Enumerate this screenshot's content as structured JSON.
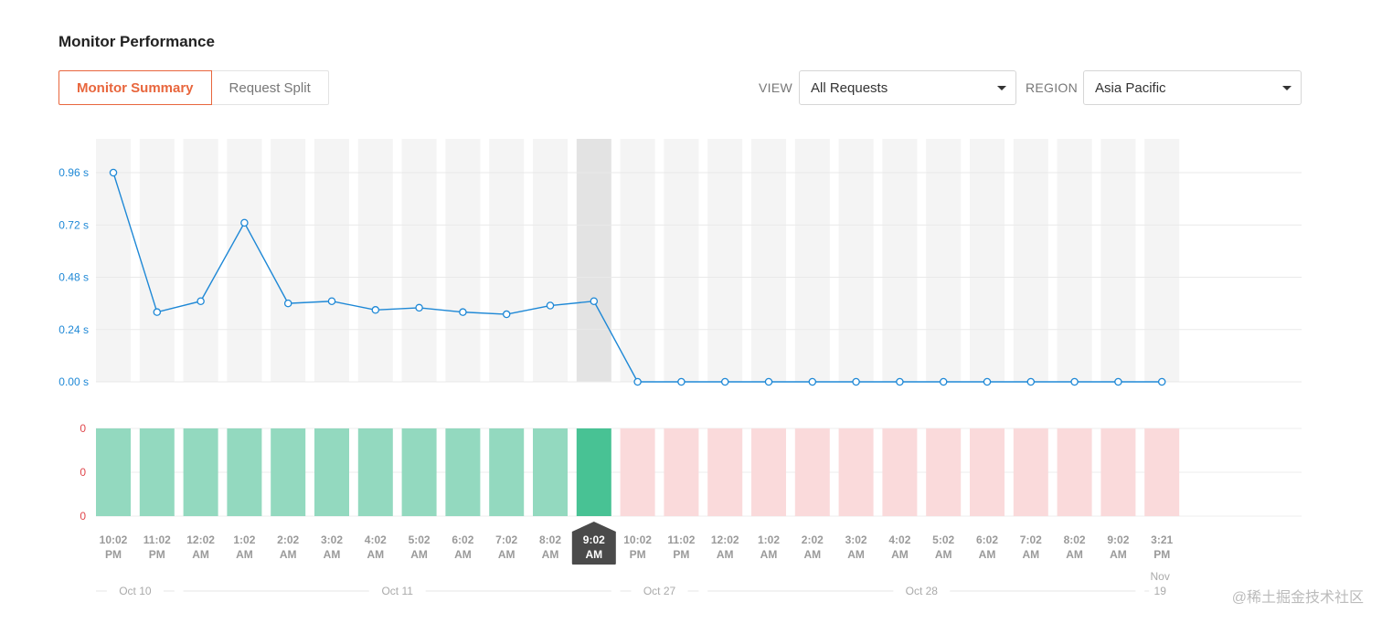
{
  "header": {
    "title": "Monitor Performance"
  },
  "tabs": [
    {
      "label": "Monitor Summary",
      "active": true
    },
    {
      "label": "Request Split",
      "active": false
    }
  ],
  "filters": {
    "view_label": "VIEW",
    "view_value": "All Requests",
    "region_label": "REGION",
    "region_value": "Asia Pacific"
  },
  "colors": {
    "accent": "#e8663d",
    "line": "#1e88d6",
    "success_bar": "#93d9bf",
    "success_bar_active": "#48c294",
    "fail_bar": "#fadadb",
    "fail_axis": "#e0474c",
    "column_bg": "#f4f4f4",
    "column_active": "#e3e3e3",
    "badge_bg": "#4a4a4a"
  },
  "chart_data": {
    "type": "line",
    "y_tick_labels": [
      "0.96 s",
      "0.72 s",
      "0.48 s",
      "0.24 s",
      "0.00 s"
    ],
    "y_ticks": [
      0.96,
      0.72,
      0.48,
      0.24,
      0.0
    ],
    "ylim": [
      0,
      0.96
    ],
    "x": [
      [
        "10:02",
        "PM"
      ],
      [
        "11:02",
        "PM"
      ],
      [
        "12:02",
        "AM"
      ],
      [
        "1:02",
        "AM"
      ],
      [
        "2:02",
        "AM"
      ],
      [
        "3:02",
        "AM"
      ],
      [
        "4:02",
        "AM"
      ],
      [
        "5:02",
        "AM"
      ],
      [
        "6:02",
        "AM"
      ],
      [
        "7:02",
        "AM"
      ],
      [
        "8:02",
        "AM"
      ],
      [
        "9:02",
        "AM"
      ],
      [
        "10:02",
        "PM"
      ],
      [
        "11:02",
        "PM"
      ],
      [
        "12:02",
        "AM"
      ],
      [
        "1:02",
        "AM"
      ],
      [
        "2:02",
        "AM"
      ],
      [
        "3:02",
        "AM"
      ],
      [
        "4:02",
        "AM"
      ],
      [
        "5:02",
        "AM"
      ],
      [
        "6:02",
        "AM"
      ],
      [
        "7:02",
        "AM"
      ],
      [
        "8:02",
        "AM"
      ],
      [
        "9:02",
        "AM"
      ],
      [
        "3:21",
        "PM"
      ]
    ],
    "selected_index": 11,
    "series": [
      {
        "values": [
          0.96,
          0.32,
          0.37,
          0.73,
          0.36,
          0.37,
          0.33,
          0.34,
          0.32,
          0.31,
          0.35,
          0.37,
          0,
          0,
          0,
          0,
          0,
          0,
          0,
          0,
          0,
          0,
          0,
          0,
          0
        ]
      }
    ],
    "status_bars": {
      "axis_labels": [
        "0",
        "0",
        "0"
      ],
      "status": [
        "success",
        "success",
        "success",
        "success",
        "success",
        "success",
        "success",
        "success",
        "success",
        "success",
        "success",
        "success",
        "fail",
        "fail",
        "fail",
        "fail",
        "fail",
        "fail",
        "fail",
        "fail",
        "fail",
        "fail",
        "fail",
        "fail",
        "fail"
      ]
    },
    "date_groups": [
      {
        "label": "Oct 10",
        "start": 0,
        "end": 1
      },
      {
        "label": "Oct 11",
        "start": 2,
        "end": 11
      },
      {
        "label": "Oct 27",
        "start": 12,
        "end": 13
      },
      {
        "label": "Oct 28",
        "start": 14,
        "end": 23
      },
      {
        "label": "Nov 19",
        "start": 24,
        "end": 24
      }
    ]
  },
  "watermark": "@稀土掘金技术社区"
}
